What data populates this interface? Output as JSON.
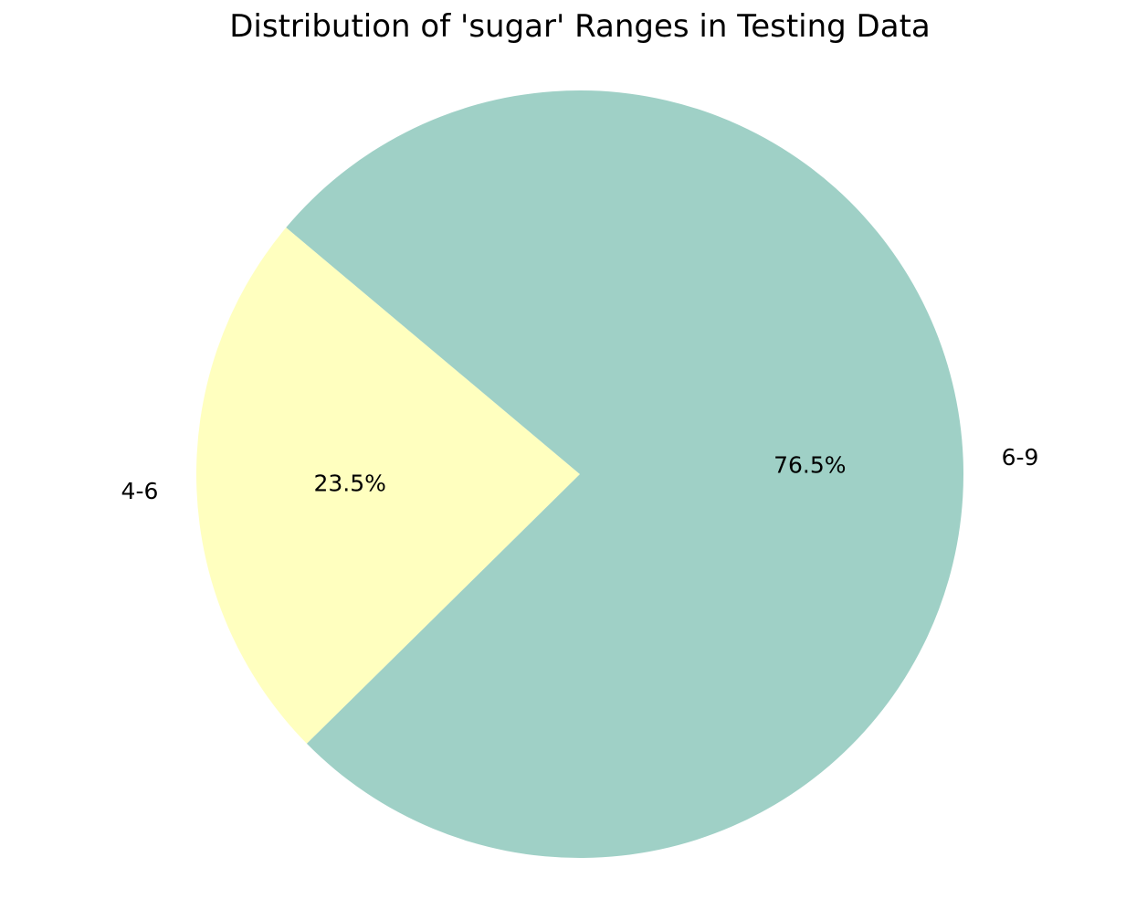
{
  "chart_data": {
    "type": "pie",
    "title": "Distribution of 'sugar' Ranges in Testing Data",
    "categories": [
      "4-6",
      "6-9"
    ],
    "values": [
      23.5,
      76.5
    ],
    "percent_labels": [
      "23.5%",
      "76.5%"
    ],
    "colors": [
      "#ffffbf",
      "#9fd0c6"
    ],
    "start_angle_deg": 140,
    "direction": "counterclockwise",
    "legend": "none"
  }
}
